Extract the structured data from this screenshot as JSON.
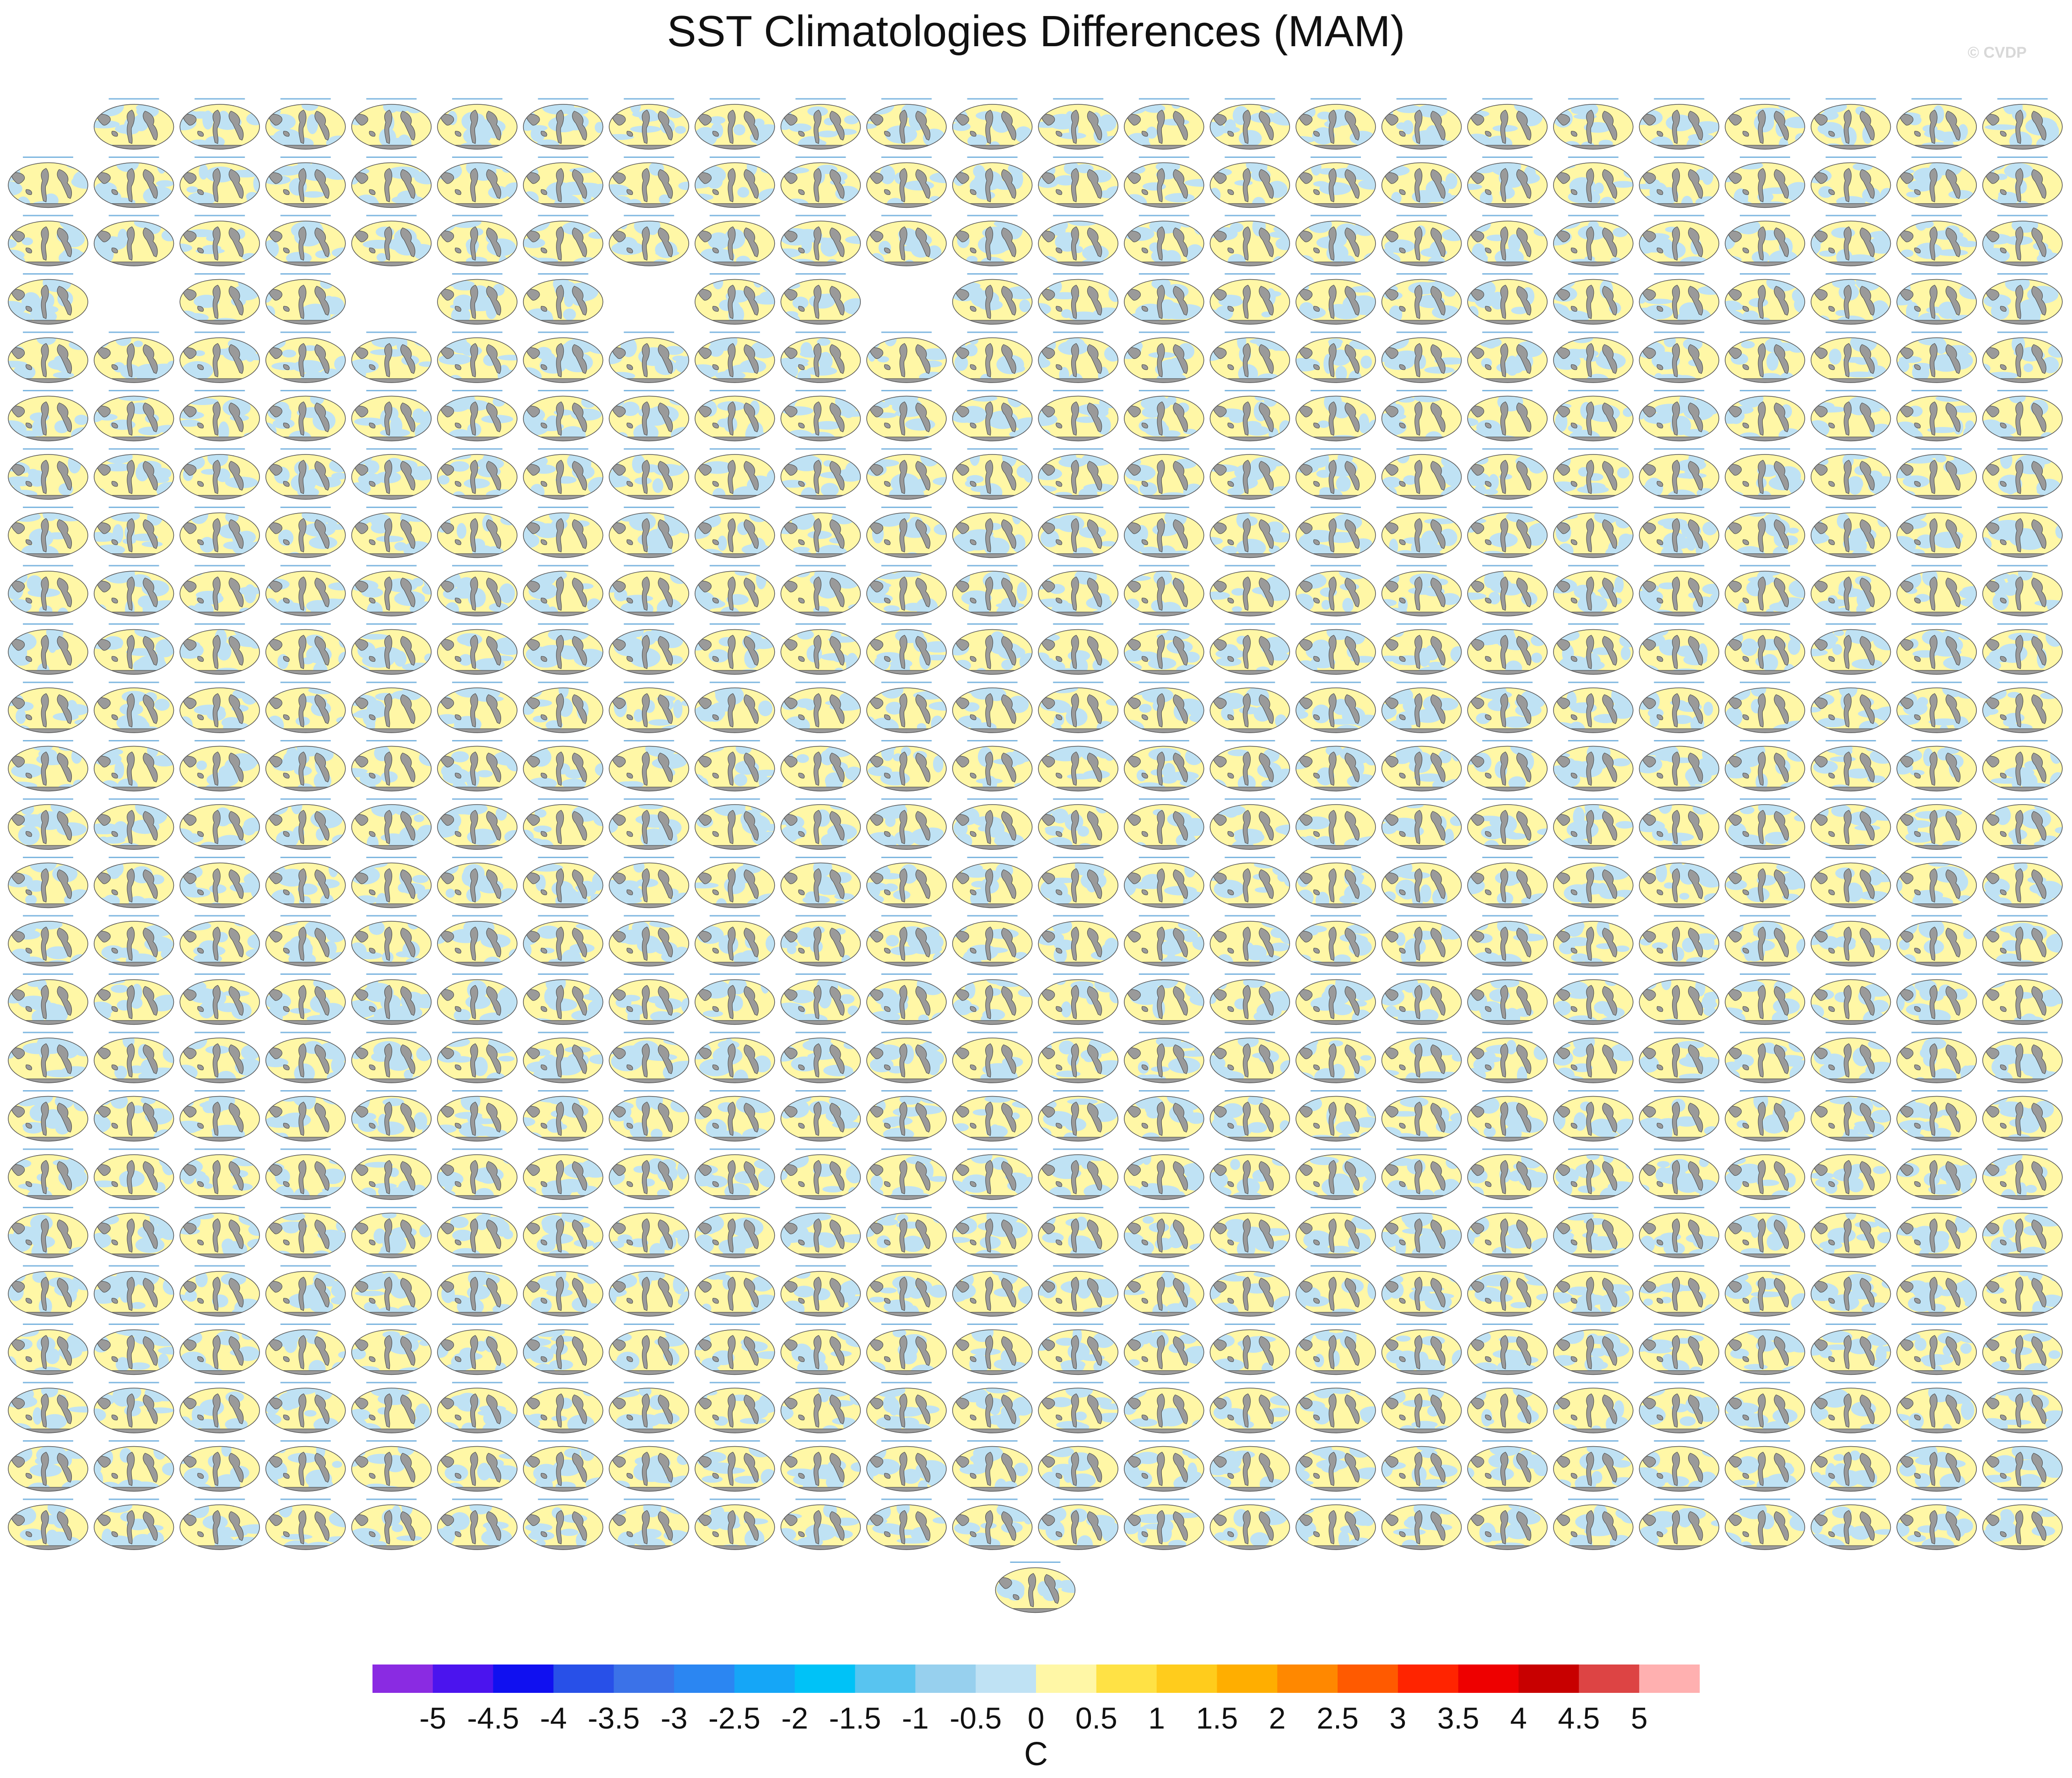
{
  "title": "SST Climatologies Differences (MAM)",
  "watermark": "© CVDP",
  "colorbar": {
    "units": "C",
    "tick_labels": [
      "-5",
      "-4.5",
      "-4",
      "-3.5",
      "-3",
      "-2.5",
      "-2",
      "-1.5",
      "-1",
      "-0.5",
      "0",
      "0.5",
      "1",
      "1.5",
      "2",
      "2.5",
      "3",
      "3.5",
      "4",
      "4.5",
      "5"
    ],
    "colors": [
      "#8a2be2",
      "#4b14ee",
      "#1010f0",
      "#2850e8",
      "#3b72e8",
      "#2b86f2",
      "#15a6f7",
      "#00c2f7",
      "#58c4f0",
      "#97d0ee",
      "#bfe2f4",
      "#fff7a6",
      "#ffe245",
      "#ffcc1c",
      "#ffae00",
      "#ff8800",
      "#ff5a00",
      "#ff2400",
      "#ee0000",
      "#c80000",
      "#dd4444",
      "#ffb0b0"
    ]
  },
  "chart_data": {
    "type": "heatmap",
    "description_panels": "Grid of global map panels of SST climatology differences",
    "panel_rows": 25,
    "panel_cols": 24,
    "missing_panels_row1": [
      1
    ],
    "missing_panels_row4": [
      2,
      5,
      8,
      11
    ],
    "extra_bottom_panels": 1,
    "color_scale_min": -5,
    "color_scale_max": 5,
    "units": "C"
  }
}
